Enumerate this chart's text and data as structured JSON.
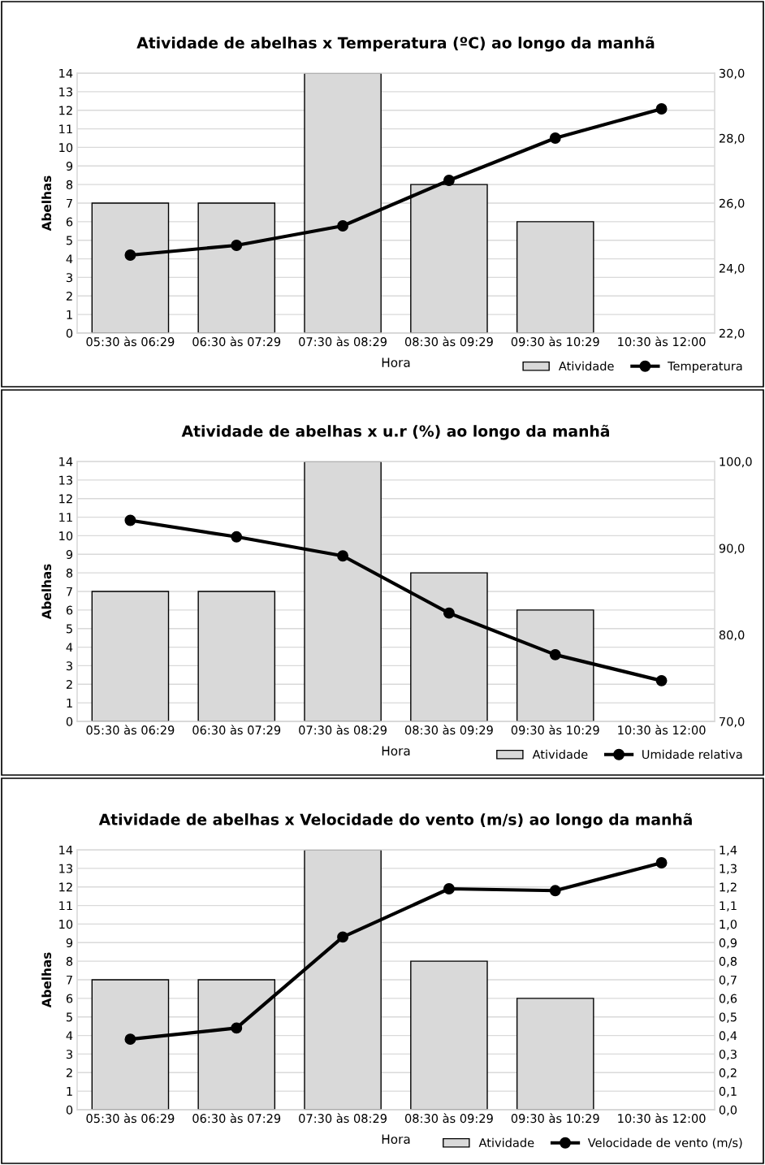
{
  "chart_data": [
    {
      "type": "bar",
      "title": "Atividade de abelhas x Temperatura (ºC) ao longo da manhã",
      "xlabel": "Hora",
      "ylabel": "Abelhas",
      "categories": [
        "05:30 às 06:29",
        "06:30 às 07:29",
        "07:30 às 08:29",
        "08:30 às 09:29",
        "09:30 às 10:29",
        "10:30 às 12:00"
      ],
      "series": [
        {
          "name": "Atividade",
          "color": "#d9d9d9",
          "values": [
            7,
            7,
            14,
            8,
            6,
            null
          ]
        },
        {
          "name": "Temperatura",
          "type": "line",
          "axis": "y2",
          "color": "#000000",
          "values": [
            24.4,
            24.7,
            25.3,
            26.7,
            28.0,
            28.9
          ]
        }
      ],
      "ylim": [
        0,
        14
      ],
      "yticks": [
        0,
        1,
        2,
        3,
        4,
        5,
        6,
        7,
        8,
        9,
        10,
        11,
        12,
        13,
        14
      ],
      "y2lim": [
        22,
        30
      ],
      "y2ticks": [
        {
          "value": 22,
          "label": "22,0"
        },
        {
          "value": 24,
          "label": "24,0"
        },
        {
          "value": 26,
          "label": "26,0"
        },
        {
          "value": 28,
          "label": "28,0"
        },
        {
          "value": 30,
          "label": "30,0"
        }
      ],
      "grid": "y",
      "legend": "bottom right",
      "marker": "circle",
      "line_style": "solid"
    },
    {
      "type": "bar",
      "title": "Atividade de abelhas x u.r (%) ao longo da manhã",
      "xlabel": "Hora",
      "ylabel": "Abelhas",
      "categories": [
        "05:30 às 06:29",
        "06:30 às 07:29",
        "07:30 às 08:29",
        "08:30 às 09:29",
        "09:30 às 10:29",
        "10:30 às 12:00"
      ],
      "series": [
        {
          "name": "Atividade",
          "color": "#d9d9d9",
          "values": [
            7,
            7,
            14,
            8,
            6,
            null
          ]
        },
        {
          "name": "Umidade relativa",
          "type": "line",
          "axis": "y2",
          "color": "#000000",
          "values": [
            93.2,
            91.3,
            89.1,
            82.5,
            77.7,
            74.7
          ]
        }
      ],
      "ylim": [
        0,
        14
      ],
      "yticks": [
        0,
        1,
        2,
        3,
        4,
        5,
        6,
        7,
        8,
        9,
        10,
        11,
        12,
        13,
        14
      ],
      "y2lim": [
        70,
        100
      ],
      "y2ticks": [
        {
          "value": 70,
          "label": "70,0"
        },
        {
          "value": 80,
          "label": "80,0"
        },
        {
          "value": 90,
          "label": "90,0"
        },
        {
          "value": 100,
          "label": "100,0"
        }
      ],
      "grid": "y",
      "legend": "bottom right",
      "marker": "circle",
      "line_style": "solid"
    },
    {
      "type": "bar",
      "title": "Atividade de abelhas x Velocidade do vento (m/s) ao longo da manhã",
      "xlabel": "Hora",
      "ylabel": "Abelhas",
      "categories": [
        "05:30 às 06:29",
        "06:30 às 07:29",
        "07:30 às 08:29",
        "08:30 às 09:29",
        "09:30 às 10:29",
        "10:30 às 12:00"
      ],
      "series": [
        {
          "name": "Atividade",
          "color": "#d9d9d9",
          "values": [
            7,
            7,
            14,
            8,
            6,
            null
          ]
        },
        {
          "name": "Velocidade de vento (m/s)",
          "type": "line",
          "axis": "y2",
          "color": "#000000",
          "values": [
            0.38,
            0.44,
            0.93,
            1.19,
            1.18,
            1.33
          ]
        }
      ],
      "ylim": [
        0,
        14
      ],
      "yticks": [
        0,
        1,
        2,
        3,
        4,
        5,
        6,
        7,
        8,
        9,
        10,
        11,
        12,
        13,
        14
      ],
      "y2lim": [
        0,
        1.4
      ],
      "y2ticks": [
        {
          "value": 0,
          "label": "0,0"
        },
        {
          "value": 0.1,
          "label": "0,1"
        },
        {
          "value": 0.2,
          "label": "0,2"
        },
        {
          "value": 0.3,
          "label": "0,3"
        },
        {
          "value": 0.4,
          "label": "0,4"
        },
        {
          "value": 0.5,
          "label": "0,5"
        },
        {
          "value": 0.6,
          "label": "0,6"
        },
        {
          "value": 0.7,
          "label": "0,7"
        },
        {
          "value": 0.8,
          "label": "0,8"
        },
        {
          "value": 0.9,
          "label": "0,9"
        },
        {
          "value": 1.0,
          "label": "1,0"
        },
        {
          "value": 1.1,
          "label": "1,1"
        },
        {
          "value": 1.2,
          "label": "1,2"
        },
        {
          "value": 1.3,
          "label": "1,3"
        },
        {
          "value": 1.4,
          "label": "1,4"
        }
      ],
      "grid": "y",
      "legend": "bottom right",
      "marker": "circle",
      "line_style": "solid"
    }
  ]
}
